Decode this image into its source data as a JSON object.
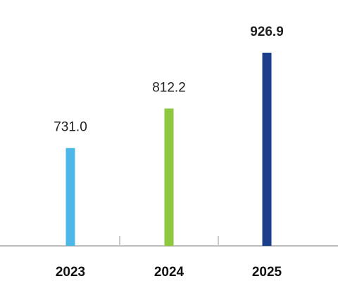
{
  "chart_data": {
    "type": "bar",
    "title": "",
    "xlabel": "",
    "ylabel": "",
    "categories": [
      "2023",
      "2024",
      "2025"
    ],
    "values": [
      731.0,
      812.2,
      926.9
    ],
    "value_labels": [
      "731.0",
      "812.2",
      "926.9"
    ],
    "colors": [
      "#4DB8E8",
      "#8DC63F",
      "#1B3F8B"
    ],
    "highlight_label_color": "#2B4E91",
    "highlight_index": 2,
    "grid": false,
    "legend": "none"
  }
}
